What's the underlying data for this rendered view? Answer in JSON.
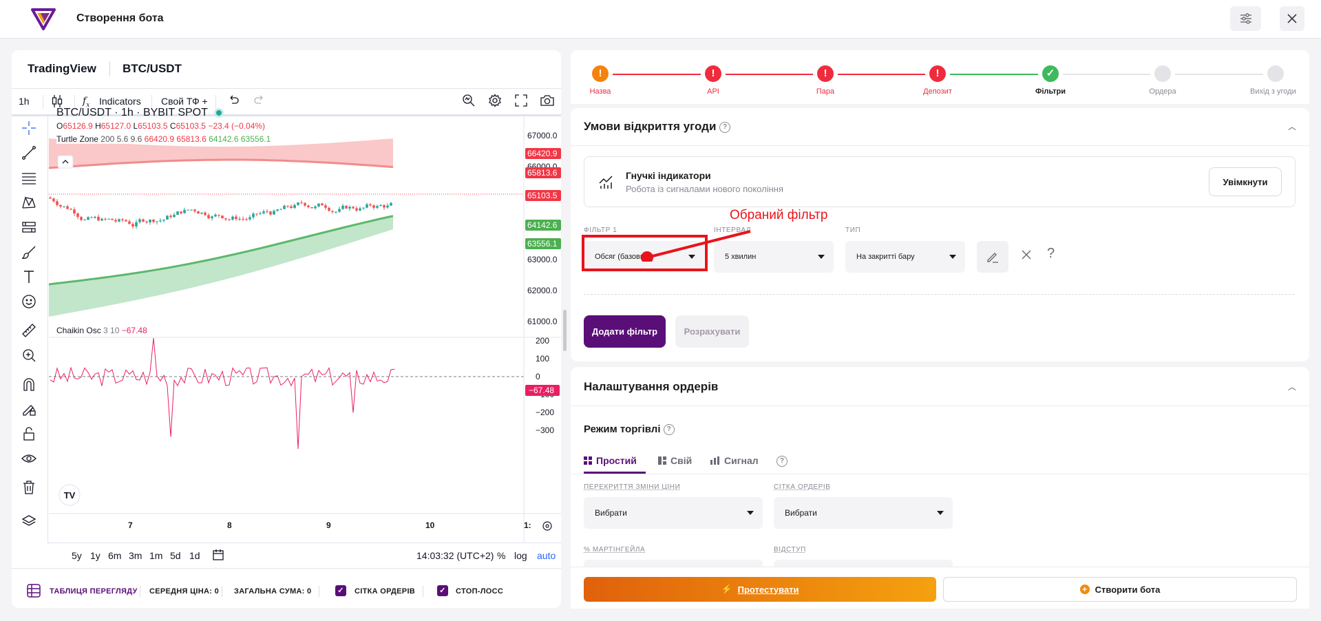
{
  "header": {
    "title": "Створення бота"
  },
  "tradingview": {
    "brand": "TradingView",
    "symbol": "BTC/USDT",
    "toolbar": {
      "interval": "1h",
      "indicators": "Indicators",
      "custom_tf": "Свой ТФ +"
    },
    "legend": {
      "title": "BTC/USDT · 1h · BYBIT SPOT",
      "o_label": "O",
      "o": "65126.9",
      "h_label": "H",
      "h": "65127.0",
      "l_label": "L",
      "l": "65103.5",
      "c_label": "C",
      "c": "65103.5",
      "change": "−23.4 (−0.04%)",
      "turtle_name": "Turtle Zone",
      "turtle_params": "200 5.6 9.6",
      "turtle_v1": "66420.9",
      "turtle_v2": "65813.6",
      "turtle_v3": "64142.6",
      "turtle_v4": "63556.1",
      "chaikin_name": "Chaikin Osc",
      "chaikin_params": "3 10",
      "chaikin_value": "−67.48"
    },
    "price_axis": [
      "67000.0",
      "66000.0",
      "63000.0",
      "62000.0",
      "61000.0"
    ],
    "price_tags": [
      "66420.9",
      "65813.6",
      "65103.5",
      "64142.6",
      "63556.1"
    ],
    "osc_axis": [
      "200",
      "100",
      "0",
      "−100",
      "−200",
      "−300"
    ],
    "osc_tag": "−67.48",
    "time_axis": [
      "7",
      "8",
      "9",
      "10",
      "1:"
    ],
    "ranges": [
      "5y",
      "1y",
      "6m",
      "3m",
      "1m",
      "5d",
      "1d"
    ],
    "clock": "14:03:32 (UTC+2)",
    "pct": "%",
    "log": "log",
    "auto": "auto",
    "colors": {
      "up": "#26a69a",
      "down": "#ef5350",
      "upper_band": "#f7a4a4",
      "lower_band": "#8fd19e",
      "osc": "#e91e63",
      "accent": "#2962ff"
    }
  },
  "footer": {
    "table": "ТАБЛИЦЯ ПЕРЕГЛЯДУ",
    "avg_price": "СЕРЕДНЯ ЦІНА: 0",
    "total_sum": "ЗАГАЛЬНА СУМА: 0",
    "grid_orders": "СІТКА ОРДЕРІВ",
    "stop_loss": "СТОП-ЛОСС"
  },
  "steps": [
    {
      "label": "Назва",
      "state": "warning"
    },
    {
      "label": "API",
      "state": "error"
    },
    {
      "label": "Пара",
      "state": "error"
    },
    {
      "label": "Депозит",
      "state": "error"
    },
    {
      "label": "Фільтри",
      "state": "done"
    },
    {
      "label": "Ордера",
      "state": "pending"
    },
    {
      "label": "Вихід з угоди",
      "state": "pending"
    }
  ],
  "step_icons": {
    "warning": "!",
    "error": "!",
    "done": "✓",
    "pending": ""
  },
  "open_conditions": {
    "title": "Умови відкриття угоди",
    "flex_title": "Гнучкі індикатори",
    "flex_sub": "Робота із сигналами нового покоління",
    "enable": "Увімкнути",
    "filter_label": "ФІЛЬТР 1",
    "filter_value": "Обсяг (базовий)",
    "interval_label": "ІНТЕРВАЛ",
    "interval_value": "5 хвилин",
    "type_label": "ТИП",
    "type_value": "На закритті бару",
    "add_filter": "Додати фільтр",
    "calculate": "Розрахувати",
    "annotation": "Обраний фільтр"
  },
  "orders": {
    "title": "Налаштування ордерів",
    "mode_title": "Режим торгівлі",
    "tabs": [
      "Простий",
      "Свій",
      "Сигнал"
    ],
    "overlap_label": "ПЕРЕКРИТТЯ ЗМІНИ ЦІНИ",
    "overlap_value": "Вибрати",
    "grid_label": "СІТКА ОРДЕРІВ",
    "grid_value": "Вибрати",
    "martingale_label": "% МАРТІНГЕЙЛА",
    "offset_label": "ВІДСТУП"
  },
  "actions": {
    "test": "Протестувати",
    "create": "Створити бота"
  }
}
